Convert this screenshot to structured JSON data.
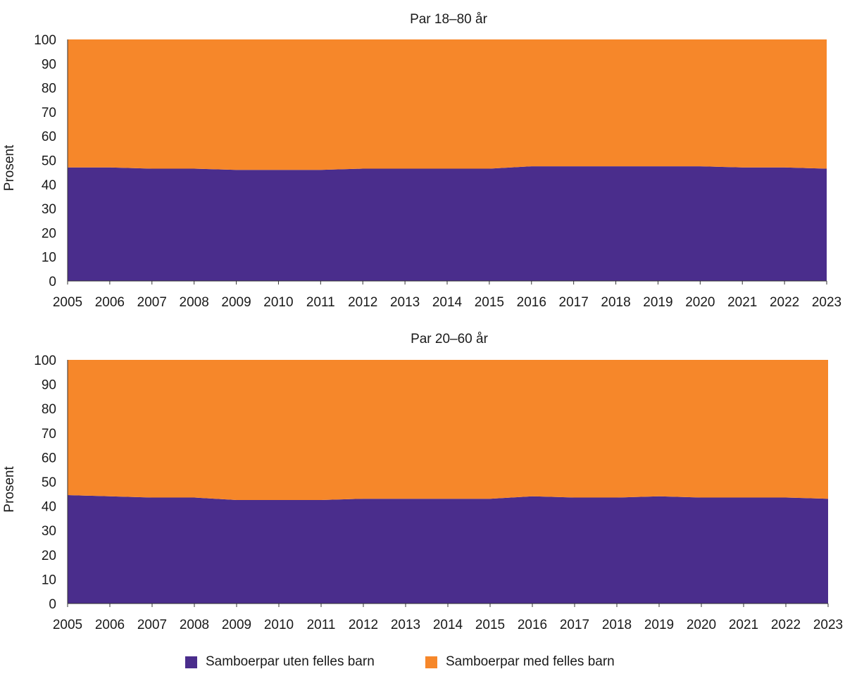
{
  "chart_data": [
    {
      "type": "area",
      "stacked": true,
      "title": "Par 18–80 år",
      "ylabel": "Prosent",
      "xlabel": "",
      "ylim": [
        0,
        100
      ],
      "yticks": [
        0,
        10,
        20,
        30,
        40,
        50,
        60,
        70,
        80,
        90,
        100
      ],
      "categories": [
        "2005",
        "2006",
        "2007",
        "2008",
        "2009",
        "2010",
        "2011",
        "2012",
        "2013",
        "2014",
        "2015",
        "2016",
        "2017",
        "2018",
        "2019",
        "2020",
        "2021",
        "2022",
        "2023"
      ],
      "series": [
        {
          "name": "Samboerpar uten felles barn",
          "color": "#4a2d8c",
          "values": [
            47,
            47,
            46.5,
            46.5,
            46,
            46,
            46,
            46.5,
            46.5,
            46.5,
            46.5,
            47.5,
            47.5,
            47.5,
            47.5,
            47.5,
            47,
            47,
            46.5
          ]
        },
        {
          "name": "Samboerpar med felles barn",
          "color": "#f6872a",
          "values": [
            53,
            53,
            53.5,
            53.5,
            54,
            54,
            54,
            53.5,
            53.5,
            53.5,
            53.5,
            52.5,
            52.5,
            52.5,
            52.5,
            52.5,
            53,
            53,
            53.5
          ]
        }
      ],
      "grid": false,
      "legend": "bottom"
    },
    {
      "type": "area",
      "stacked": true,
      "title": "Par 20–60 år",
      "ylabel": "Prosent",
      "xlabel": "",
      "ylim": [
        0,
        100
      ],
      "yticks": [
        0,
        10,
        20,
        30,
        40,
        50,
        60,
        70,
        80,
        90,
        100
      ],
      "categories": [
        "2005",
        "2006",
        "2007",
        "2008",
        "2009",
        "2010",
        "2011",
        "2012",
        "2013",
        "2014",
        "2015",
        "2016",
        "2017",
        "2018",
        "2019",
        "2020",
        "2021",
        "2022",
        "2023"
      ],
      "series": [
        {
          "name": "Samboerpar uten felles barn",
          "color": "#4a2d8c",
          "values": [
            44.5,
            44,
            43.5,
            43.5,
            42.5,
            42.5,
            42.5,
            43,
            43,
            43,
            43,
            44,
            43.5,
            43.5,
            44,
            43.5,
            43.5,
            43.5,
            43
          ]
        },
        {
          "name": "Samboerpar med felles barn",
          "color": "#f6872a",
          "values": [
            55.5,
            56,
            56.5,
            56.5,
            57.5,
            57.5,
            57.5,
            57,
            57,
            57,
            57,
            56,
            56.5,
            56.5,
            56,
            56.5,
            56.5,
            56.5,
            57
          ]
        }
      ],
      "grid": false,
      "legend": "bottom"
    }
  ],
  "legend": {
    "items": [
      {
        "label": "Samboerpar uten felles barn",
        "color": "#4a2d8c"
      },
      {
        "label": "Samboerpar med felles barn",
        "color": "#f6872a"
      }
    ]
  }
}
